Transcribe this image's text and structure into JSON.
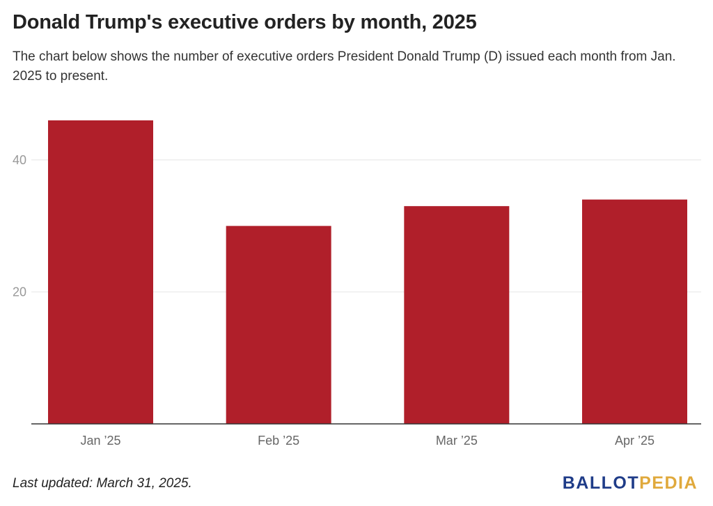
{
  "title": "Donald Trump's executive orders by month, 2025",
  "subtitle": "The chart below shows the number of executive orders President Donald Trump (D) issued each month from Jan. 2025 to present.",
  "footer": {
    "note": "Last updated: March 31, 2025.",
    "logo_part1": "BALLOT",
    "logo_part2": "PEDIA"
  },
  "colors": {
    "bar": "#b01f2a",
    "grid": "#e6e6e6",
    "axis": "#333333",
    "logo_primary": "#1f3c88",
    "logo_secondary": "#e0a93c"
  },
  "chart_data": {
    "type": "bar",
    "categories": [
      "Jan ’25",
      "Feb ’25",
      "Mar ’25",
      "Apr ’25"
    ],
    "values": [
      46,
      30,
      33,
      34
    ],
    "title": "Donald Trump's executive orders by month, 2025",
    "xlabel": "",
    "ylabel": "",
    "ylim": [
      0,
      50
    ],
    "yticks": [
      20,
      40
    ],
    "grid": true,
    "legend": "none"
  }
}
